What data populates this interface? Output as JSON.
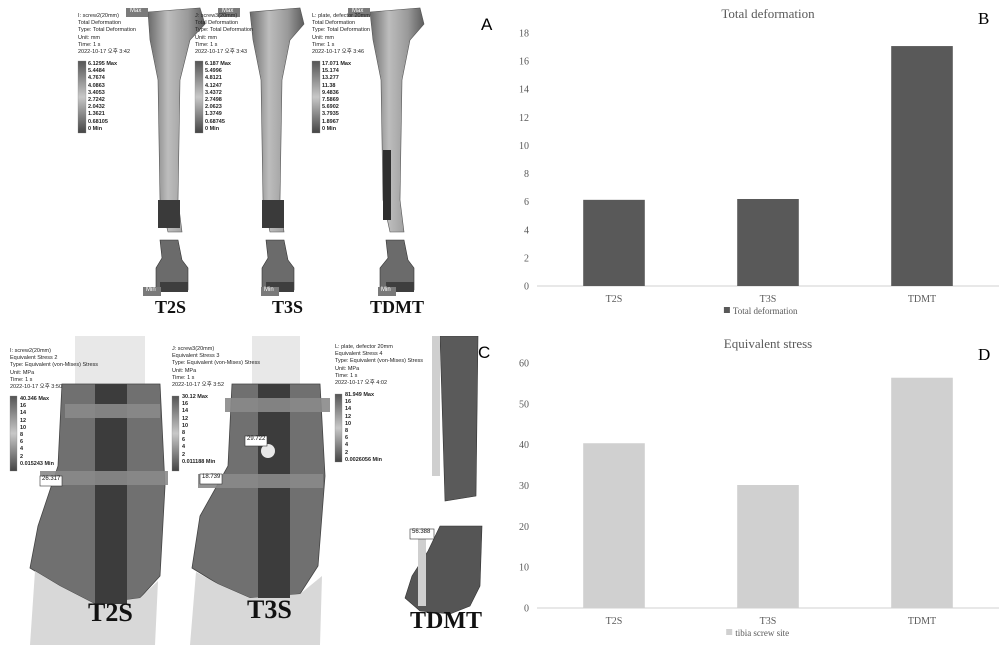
{
  "panels": {
    "a": {
      "letter": "A",
      "models": [
        {
          "label": "T2S",
          "header": [
            "I: screw2(20mm)",
            "Total Deformation",
            "Type: Total Deformation",
            "Unit: mm",
            "Time: 1 s",
            "2022-10-17 오후 3:42"
          ],
          "scale": [
            "6.1295 Max",
            "5.4484",
            "4.7674",
            "4.0863",
            "3.4053",
            "2.7242",
            "2.0432",
            "1.3621",
            "0.68105",
            "0 Min"
          ]
        },
        {
          "label": "T3S",
          "header": [
            "J: screw3(20mm)",
            "Total Deformation",
            "Type: Total Deformation",
            "Unit: mm",
            "Time: 1 s",
            "2022-10-17 오후 3:43"
          ],
          "scale": [
            "6.187 Max",
            "5.4996",
            "4.8121",
            "4.1247",
            "3.4372",
            "2.7498",
            "2.0623",
            "1.3749",
            "0.68745",
            "0 Min"
          ]
        },
        {
          "label": "TDMT",
          "header": [
            "L: plate, defector 20mm",
            "Total Deformation",
            "Type: Total Deformation",
            "Unit: mm",
            "Time: 1 s",
            "2022-10-17 오후 3:46"
          ],
          "scale": [
            "17.071 Max",
            "15.174",
            "13.277",
            "11.38",
            "9.4836",
            "7.5869",
            "5.6902",
            "3.7935",
            "1.8967",
            "0 Min"
          ]
        }
      ],
      "max_tag": "Max",
      "min_tag": "Min"
    },
    "c": {
      "letter": "C",
      "models": [
        {
          "label": "T2S",
          "header": [
            "I: screw2(20mm)",
            "Equivalent Stress 2",
            "Type: Equivalent (von-Mises) Stress",
            "Unit: MPa",
            "Time: 1 s",
            "2022-10-17 오후 3:50"
          ],
          "scale": [
            "40.346 Max",
            "16",
            "14",
            "12",
            "10",
            "8",
            "6",
            "4",
            "2",
            "0.015243 Min"
          ],
          "probe": "26.317"
        },
        {
          "label": "T3S",
          "header": [
            "J: screw3(20mm)",
            "Equivalent Stress 3",
            "Type: Equivalent (von-Mises) Stress",
            "Unit: MPa",
            "Time: 1 s",
            "2022-10-17 오후 3:52"
          ],
          "scale": [
            "30.12 Max",
            "16",
            "14",
            "12",
            "10",
            "8",
            "6",
            "4",
            "2",
            "0.011188 Min"
          ],
          "probe": "18.739",
          "probe2": "29.722"
        },
        {
          "label": "TDMT",
          "header": [
            "L: plate, defector 20mm",
            "Equivalent Stress 4",
            "Type: Equivalent (von-Mises) Stress",
            "Unit: MPa",
            "Time: 1 s",
            "2022-10-17 오후 4:02"
          ],
          "scale": [
            "81.949 Max",
            "16",
            "14",
            "12",
            "10",
            "8",
            "6",
            "4",
            "2",
            "0.0026056 Min"
          ],
          "probe": "56.388"
        }
      ]
    }
  },
  "chart_data": [
    {
      "panel": "B",
      "type": "bar",
      "title": "Total deformation",
      "categories": [
        "T2S",
        "T3S",
        "TDMT"
      ],
      "series": [
        {
          "name": "Total deformation",
          "values": [
            6.13,
            6.19,
            17.07
          ],
          "color": "#595959"
        }
      ],
      "yticks": [
        0,
        2,
        4,
        6,
        8,
        10,
        12,
        14,
        16,
        18
      ],
      "ylim": [
        0,
        18
      ],
      "grid": false,
      "legend": "bottom"
    },
    {
      "panel": "D",
      "type": "bar",
      "title": "Equivalent stress",
      "categories": [
        "T2S",
        "T3S",
        "TDMT"
      ],
      "series": [
        {
          "name": "tibia screw site",
          "values": [
            40.35,
            30.12,
            56.39
          ],
          "color": "#d0d0d0"
        }
      ],
      "yticks": [
        0,
        10,
        20,
        30,
        40,
        50,
        60
      ],
      "ylim": [
        0,
        60
      ],
      "grid": false,
      "legend": "bottom"
    }
  ]
}
